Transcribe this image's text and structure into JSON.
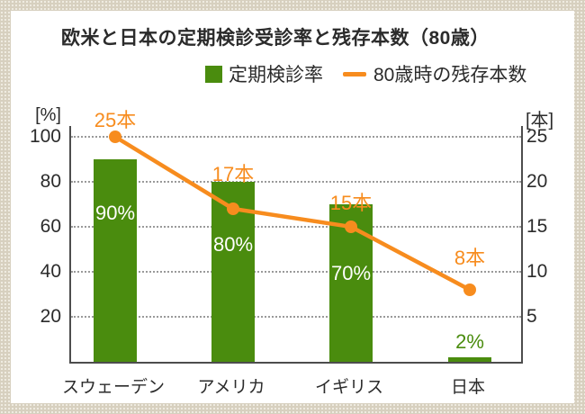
{
  "title": "欧米と日本の定期検診受診率と残存本数（80歳）",
  "legend": [
    {
      "label": "定期検診率",
      "swatch": "square",
      "color": "#4a8c0e"
    },
    {
      "label": "80歳時の残存本数",
      "swatch": "line",
      "color": "#f78c1e"
    }
  ],
  "axes": {
    "left": {
      "unit": "[%]",
      "ticks": [
        "100",
        "80",
        "60",
        "40",
        "20"
      ]
    },
    "right": {
      "unit": "[本]",
      "ticks": [
        "25",
        "20",
        "15",
        "10",
        "5"
      ]
    }
  },
  "chart_data": {
    "type": "bar",
    "subtype": "bar+line combo, dual axis",
    "title": "欧米と日本の定期検診受診率と残存本数（80歳）",
    "categories": [
      "スウェーデン",
      "アメリカ",
      "イギリス",
      "日本"
    ],
    "series": [
      {
        "name": "定期検診率",
        "type": "bar",
        "axis": "left",
        "unit": "%",
        "values": [
          90,
          80,
          70,
          2
        ],
        "labels": [
          "90%",
          "80%",
          "70%",
          "2%"
        ],
        "color": "#4a8c0e"
      },
      {
        "name": "80歳時の残存本数",
        "type": "line",
        "axis": "right",
        "unit": "本",
        "values": [
          25,
          17,
          15,
          8
        ],
        "labels": [
          "25本",
          "17本",
          "15本",
          "8本"
        ],
        "color": "#f78c1e"
      }
    ],
    "left_axis": {
      "label": "[%]",
      "range": [
        0,
        105
      ],
      "ticks": [
        20,
        40,
        60,
        80,
        100
      ]
    },
    "right_axis": {
      "label": "[本]",
      "range": [
        0,
        26.25
      ],
      "ticks": [
        5,
        10,
        15,
        20,
        25
      ]
    },
    "grid": "horizontal dotted gray",
    "legend_position": "top"
  },
  "colors": {
    "bar_green": "#4a8c0e",
    "line_orange": "#f78c1e",
    "axis_line": "#4d4d4d",
    "gridline": "#9a9a9a",
    "frame_beige": "#d7d0bf",
    "frame_dot": "#f7f4ec"
  }
}
